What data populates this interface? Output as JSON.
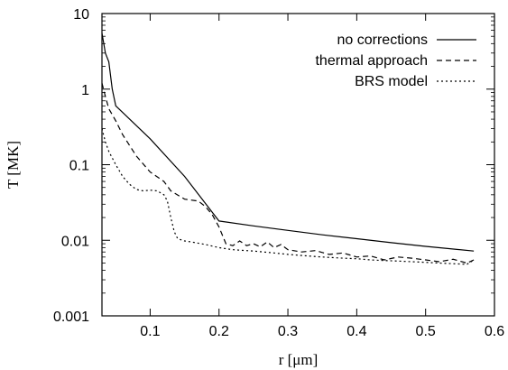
{
  "chart_data": {
    "type": "line",
    "title": "",
    "xlabel": "r [μm]",
    "ylabel": "T [MK]",
    "xlim": [
      0.03,
      0.6
    ],
    "ylim": [
      0.001,
      10
    ],
    "yscale": "log",
    "grid": false,
    "legend_position": "top-right",
    "x_ticks": [
      0.1,
      0.2,
      0.3,
      0.4,
      0.5,
      0.6
    ],
    "x_tick_labels": [
      "0.1",
      "0.2",
      "0.3",
      "0.4",
      "0.5",
      "0.6"
    ],
    "y_ticks": [
      0.001,
      0.01,
      0.1,
      1,
      10
    ],
    "y_tick_labels": [
      "0.001",
      "0.01",
      "0.1",
      "1",
      "10"
    ],
    "series": [
      {
        "name": "no corrections",
        "style": "solid",
        "x": [
          0.03,
          0.035,
          0.04,
          0.045,
          0.05,
          0.1,
          0.15,
          0.185,
          0.2,
          0.25,
          0.3,
          0.35,
          0.4,
          0.45,
          0.5,
          0.57
        ],
        "y": [
          5.5,
          3.0,
          2.3,
          1.0,
          0.6,
          0.22,
          0.07,
          0.027,
          0.018,
          0.0155,
          0.0135,
          0.0118,
          0.0105,
          0.0093,
          0.0083,
          0.0072
        ]
      },
      {
        "name": "thermal approach",
        "style": "dashed",
        "x": [
          0.03,
          0.035,
          0.04,
          0.05,
          0.06,
          0.08,
          0.1,
          0.12,
          0.13,
          0.15,
          0.17,
          0.18,
          0.19,
          0.2,
          0.21,
          0.22,
          0.23,
          0.24,
          0.25,
          0.26,
          0.27,
          0.28,
          0.29,
          0.3,
          0.32,
          0.34,
          0.36,
          0.38,
          0.4,
          0.42,
          0.44,
          0.46,
          0.48,
          0.5,
          0.52,
          0.54,
          0.56,
          0.57
        ],
        "y": [
          1.2,
          0.8,
          0.55,
          0.38,
          0.25,
          0.13,
          0.08,
          0.06,
          0.045,
          0.035,
          0.033,
          0.028,
          0.022,
          0.015,
          0.009,
          0.0085,
          0.0098,
          0.0085,
          0.009,
          0.0082,
          0.0095,
          0.008,
          0.0088,
          0.0075,
          0.007,
          0.0073,
          0.0065,
          0.0068,
          0.006,
          0.0062,
          0.0055,
          0.006,
          0.0058,
          0.0055,
          0.0052,
          0.0056,
          0.005,
          0.0055
        ]
      },
      {
        "name": "BRS model",
        "style": "dotted",
        "x": [
          0.03,
          0.035,
          0.04,
          0.05,
          0.06,
          0.07,
          0.08,
          0.09,
          0.1,
          0.11,
          0.12,
          0.125,
          0.13,
          0.135,
          0.14,
          0.15,
          0.16,
          0.18,
          0.2,
          0.22,
          0.25,
          0.28,
          0.3,
          0.32,
          0.35,
          0.38,
          0.4,
          0.42,
          0.44,
          0.46,
          0.48,
          0.5,
          0.52,
          0.54,
          0.56,
          0.57
        ],
        "y": [
          0.3,
          0.2,
          0.15,
          0.1,
          0.07,
          0.055,
          0.047,
          0.045,
          0.046,
          0.045,
          0.04,
          0.033,
          0.02,
          0.013,
          0.0105,
          0.0098,
          0.0095,
          0.0088,
          0.008,
          0.0075,
          0.0072,
          0.0068,
          0.0065,
          0.0063,
          0.006,
          0.0058,
          0.0057,
          0.0055,
          0.0054,
          0.0053,
          0.0052,
          0.0051,
          0.005,
          0.0049,
          0.0048,
          0.0055
        ]
      }
    ]
  }
}
